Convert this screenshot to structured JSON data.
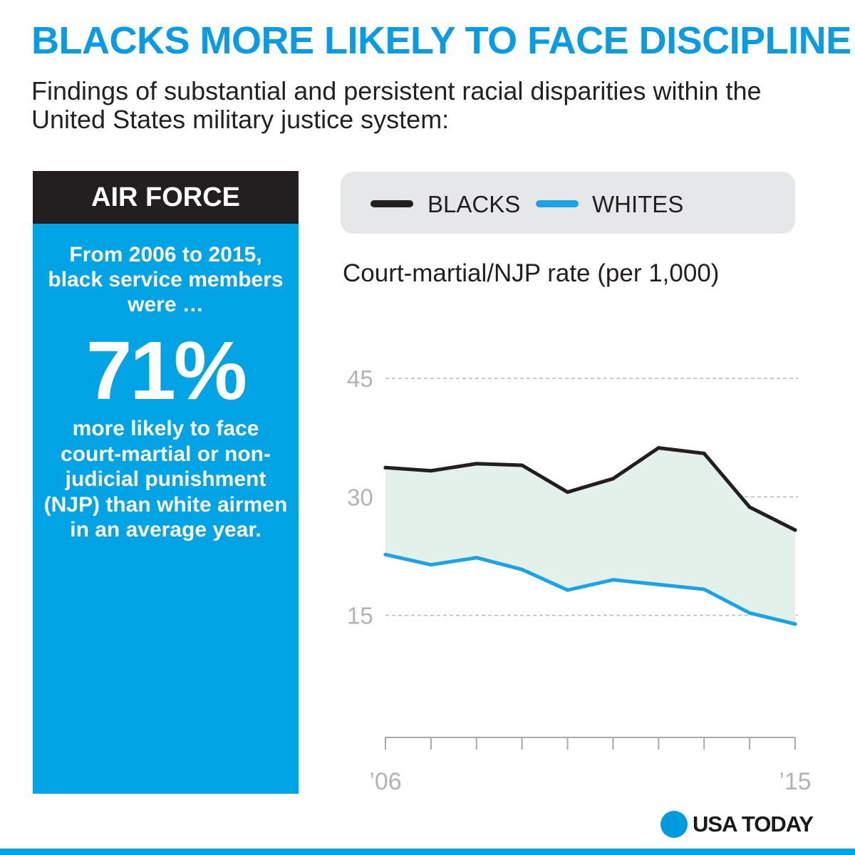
{
  "headline": "BLACKS MORE LIKELY TO FACE DISCIPLINE",
  "subtitle": "Findings of substantial and persistent racial disparities within the United States military justice system:",
  "panel": {
    "title": "AIR FORCE",
    "intro": "From 2006 to 2015, black service members were …",
    "stat": "71%",
    "outro": "more likely to face court-martial or non-judicial punishment (NJP) than white airmen in an average year."
  },
  "legend": {
    "blacks_label": "BLACKS",
    "whites_label": "WHITES"
  },
  "colors": {
    "accent": "#0a9be3",
    "blacks": "#231f20",
    "whites": "#1aa3e8",
    "gap_fill": "#e3f1ea",
    "panel_bg": "#00a3e4"
  },
  "chart_data": {
    "type": "line",
    "title": "Court-martial/NJP rate (per 1,000)",
    "x": [
      2006,
      2007,
      2008,
      2009,
      2010,
      2011,
      2012,
      2013,
      2014,
      2015
    ],
    "x_tick_labels": [
      "’06",
      "",
      "",
      "",
      "",
      "",
      "",
      "",
      "",
      "’15"
    ],
    "ylim": [
      0,
      45
    ],
    "y_ticks": [
      15,
      30,
      45
    ],
    "y_tick_labels": [
      "15",
      "30",
      "45"
    ],
    "grid": true,
    "series": [
      {
        "name": "Blacks",
        "values": [
          33.7,
          33.3,
          34.2,
          34.0,
          30.6,
          32.3,
          36.2,
          35.5,
          28.7,
          25.8
        ]
      },
      {
        "name": "Whites",
        "values": [
          22.7,
          21.4,
          22.3,
          20.8,
          18.2,
          19.5,
          18.9,
          18.3,
          15.3,
          13.9
        ]
      }
    ],
    "shade_between_series": true
  },
  "brand": {
    "name": "USA TODAY"
  }
}
